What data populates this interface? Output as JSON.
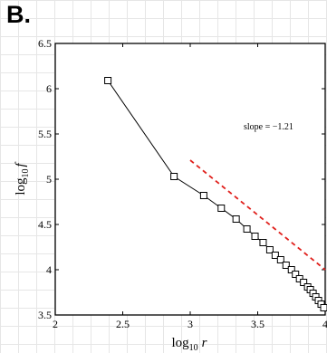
{
  "panel_label": "B.",
  "annotation": "slope = −1.21",
  "chart_data": {
    "type": "line",
    "xlabel": {
      "base": "log",
      "sub": "10",
      "var": "r"
    },
    "ylabel": {
      "base": "log",
      "sub": "10",
      "var": "f"
    },
    "xlim": [
      2,
      4
    ],
    "ylim": [
      3.5,
      6.5
    ],
    "x_ticks": [
      2,
      2.5,
      3,
      3.5,
      4
    ],
    "x_tick_labels": [
      "2",
      "2.5",
      "3",
      "3.5",
      "4"
    ],
    "y_ticks": [
      3.5,
      4,
      4.5,
      5,
      5.5,
      6,
      6.5
    ],
    "y_tick_labels": [
      "3.5",
      "4",
      "4.5",
      "5",
      "5.5",
      "6",
      "6.5"
    ],
    "grid": false,
    "series": [
      {
        "marker": "square",
        "color": "#000000",
        "x": [
          2.39,
          2.88,
          3.1,
          3.23,
          3.34,
          3.42,
          3.48,
          3.54,
          3.59,
          3.63,
          3.67,
          3.71,
          3.75,
          3.78,
          3.81,
          3.84,
          3.87,
          3.89,
          3.91,
          3.93,
          3.95,
          3.97,
          3.99
        ],
        "y": [
          6.09,
          5.03,
          4.82,
          4.68,
          4.56,
          4.45,
          4.37,
          4.3,
          4.22,
          4.16,
          4.11,
          4.05,
          4.0,
          3.95,
          3.9,
          3.86,
          3.81,
          3.78,
          3.74,
          3.7,
          3.66,
          3.62,
          3.58
        ]
      },
      {
        "style": "dashed",
        "color": "#e0201c",
        "x": [
          3.0,
          4.0
        ],
        "y": [
          5.21,
          4.0
        ]
      }
    ]
  }
}
